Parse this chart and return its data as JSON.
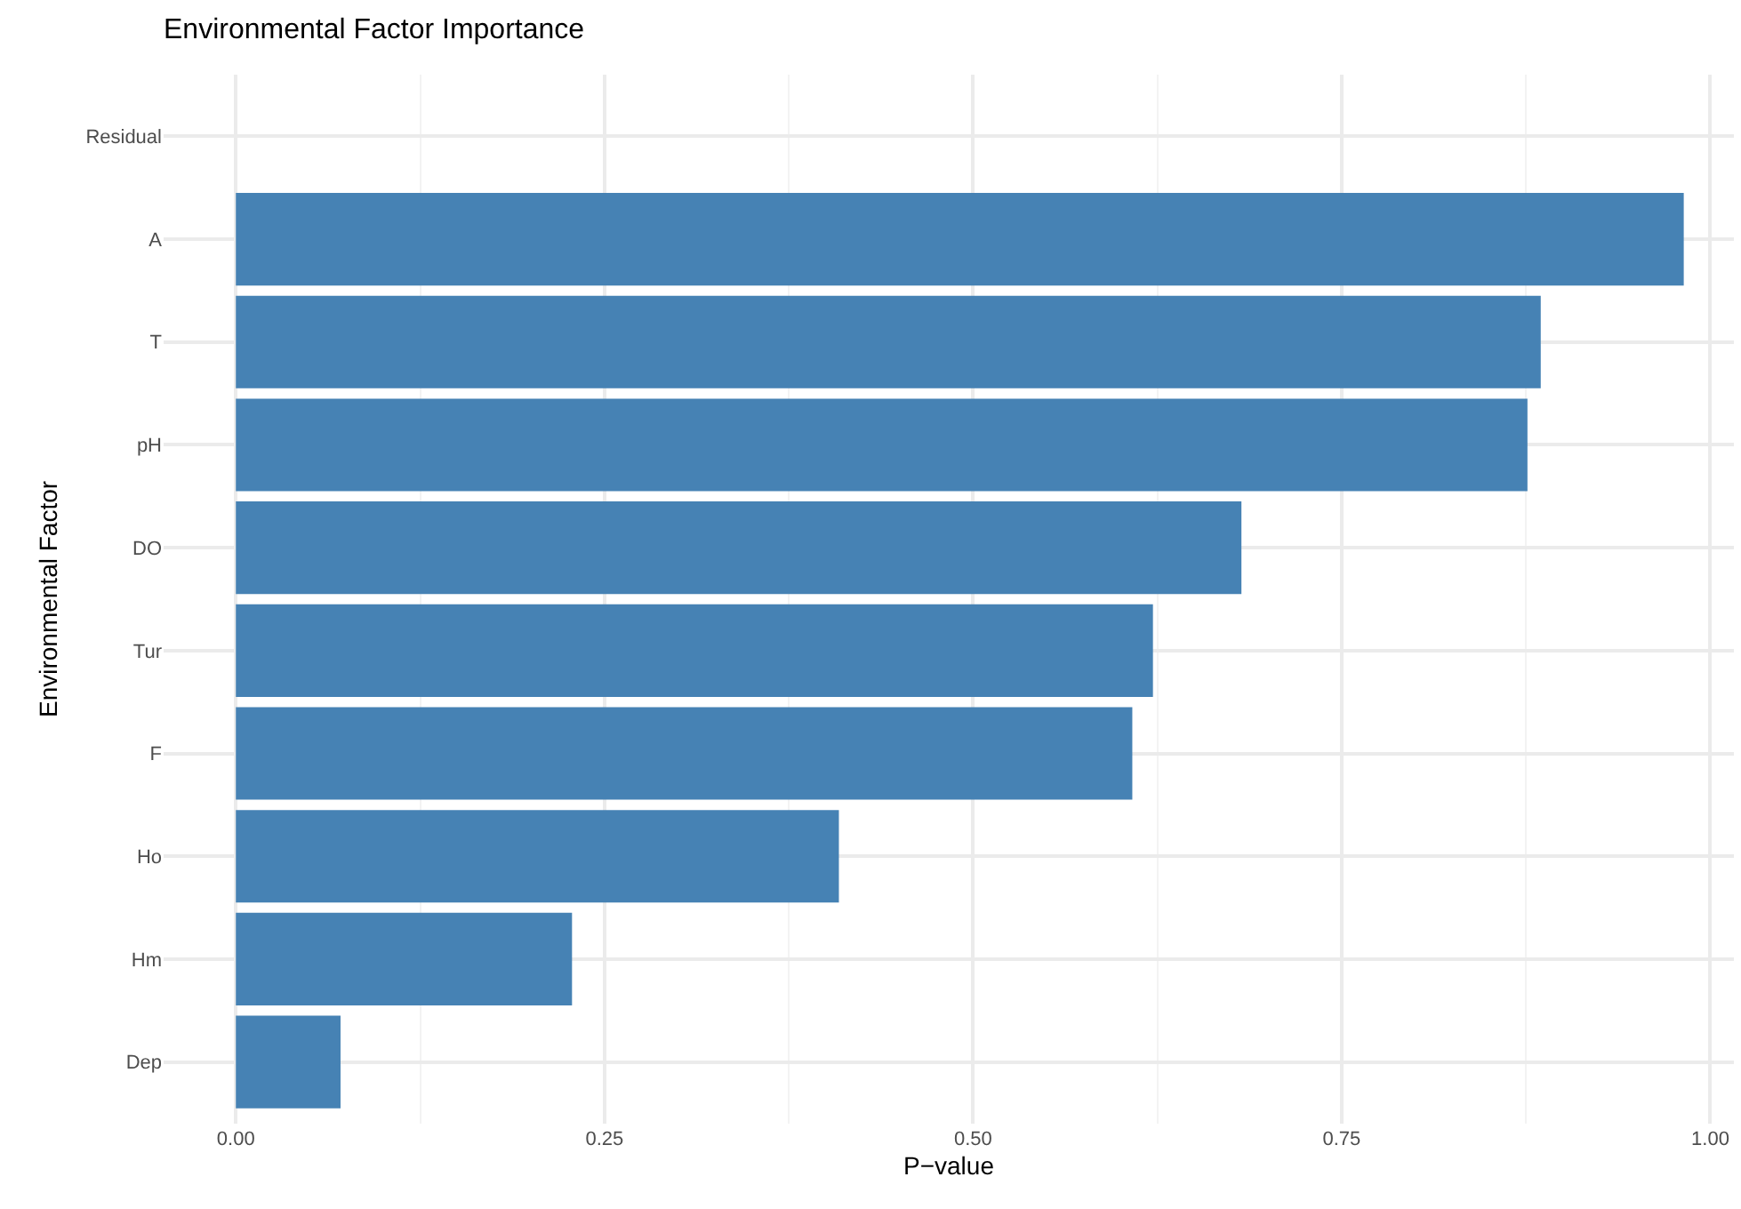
{
  "chart_data": {
    "type": "bar",
    "orientation": "horizontal",
    "title": "Environmental Factor Importance",
    "xlabel": "P−value",
    "ylabel": "Environmental Factor",
    "categories": [
      "Residual",
      "A",
      "T",
      "pH",
      "DO",
      "Tur",
      "F",
      "Ho",
      "Hm",
      "Dep"
    ],
    "values": [
      null,
      0.982,
      0.885,
      0.876,
      0.682,
      0.622,
      0.608,
      0.409,
      0.228,
      0.071
    ],
    "color": "#4682b4",
    "xlim": [
      -0.049,
      1.016
    ],
    "xticks": [
      {
        "value": 0,
        "label": "0.00"
      },
      {
        "value": 0.25,
        "label": "0.25"
      },
      {
        "value": 0.5,
        "label": "0.50"
      },
      {
        "value": 0.75,
        "label": "0.75"
      },
      {
        "value": 1,
        "label": "1.00"
      }
    ],
    "grid": true,
    "legend": false
  }
}
